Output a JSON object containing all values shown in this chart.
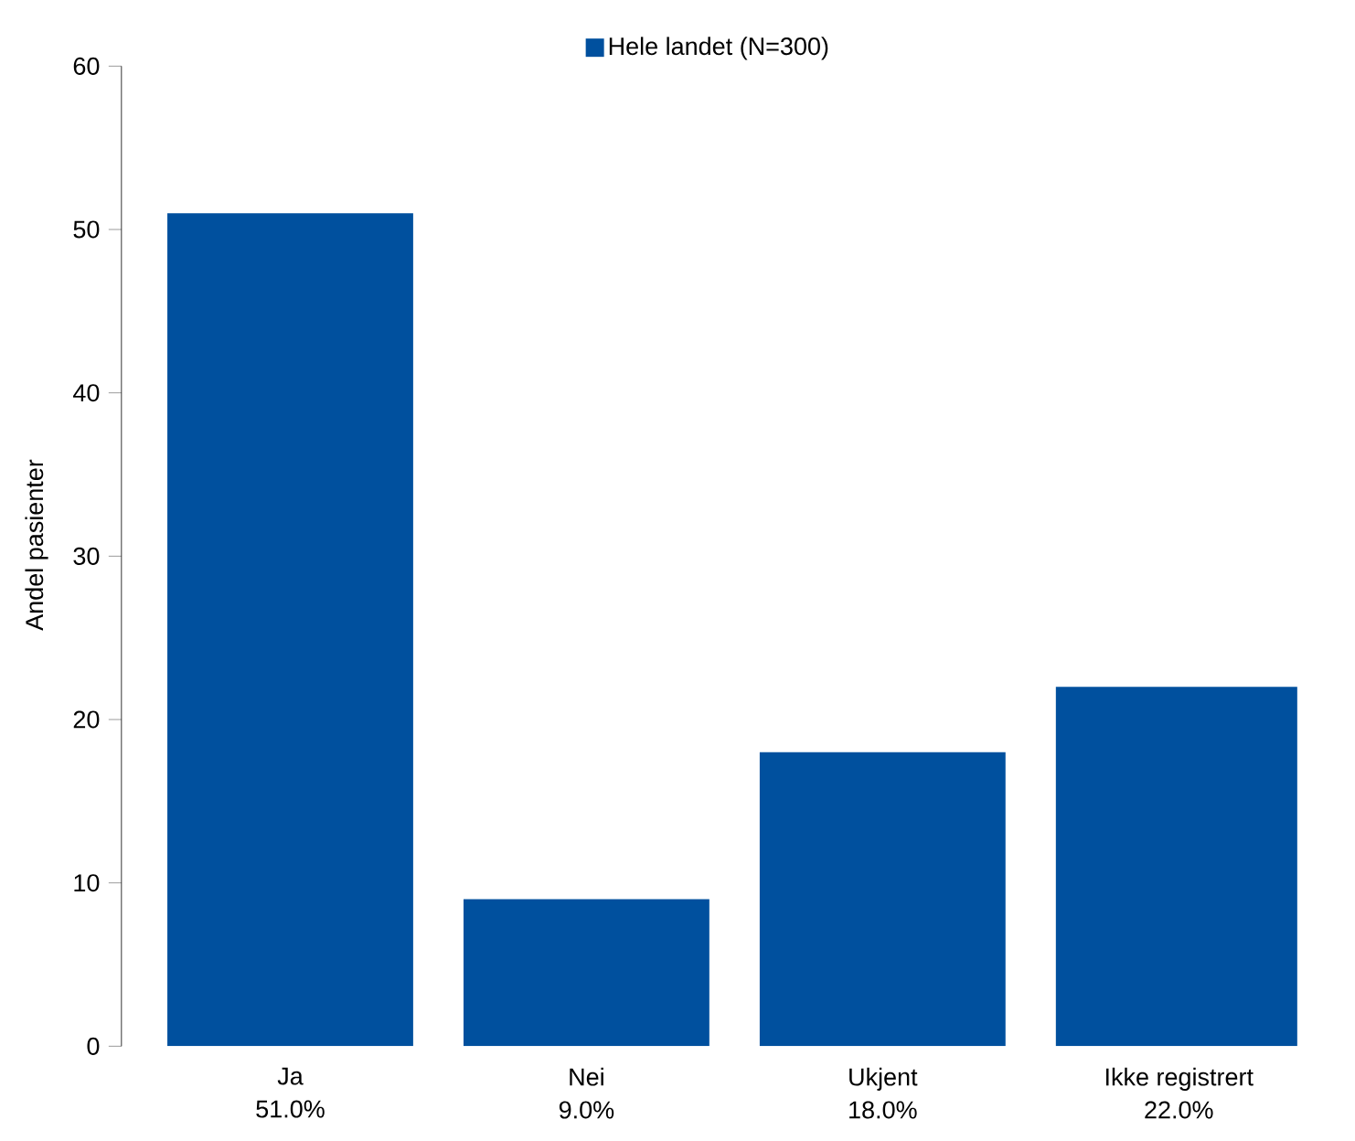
{
  "chart_data": {
    "type": "bar",
    "ylabel": "Andel pasienter",
    "categories": [
      "Ja",
      "Nei",
      "Ukjent",
      "Ikke registrert"
    ],
    "series": [
      {
        "name": "Hele landet (N=300)",
        "color": "#00509e",
        "values": [
          51,
          9,
          18,
          22
        ],
        "value_labels": [
          "51.0%",
          "9.0%",
          "18.0%",
          "22.0%"
        ]
      }
    ],
    "ylim": [
      0,
      60
    ],
    "yticks": [
      0,
      10,
      20,
      30,
      40,
      50,
      60
    ],
    "grid": false,
    "legend": "top"
  }
}
